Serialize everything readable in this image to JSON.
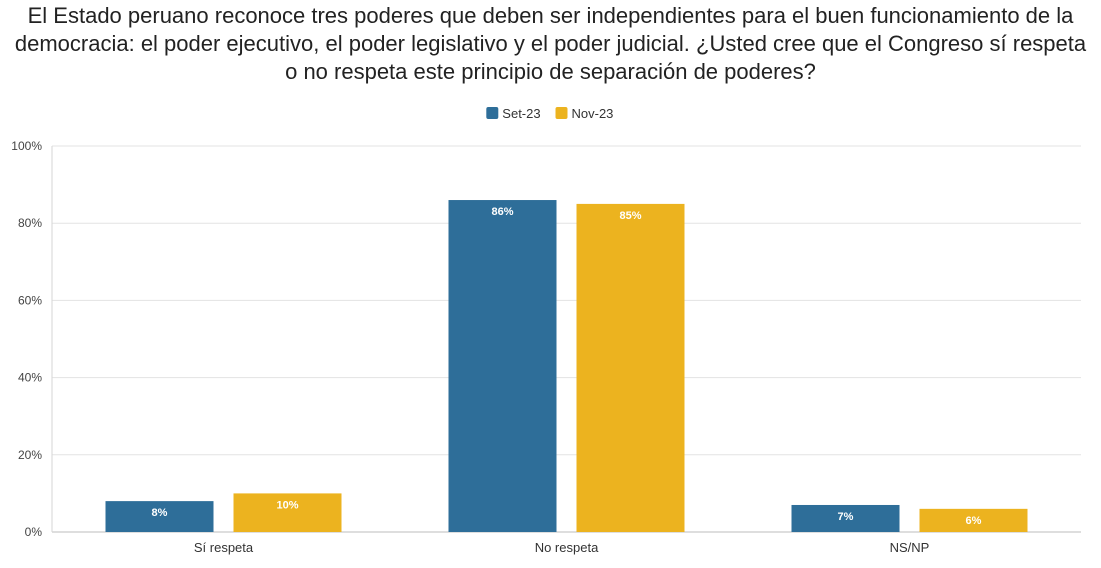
{
  "chart_data": {
    "type": "bar",
    "title_lines": [
      "El Estado peruano reconoce tres poderes que deben ser independientes para el buen funcionamiento de la",
      "democracia: el poder ejecutivo, el poder legislativo y el poder judicial. ¿Usted cree que el Congreso sí respeta",
      "o no respeta este principio de separación de poderes?"
    ],
    "categories": [
      "Sí respeta",
      "No respeta",
      "NS/NP"
    ],
    "series": [
      {
        "name": "Set-23",
        "color": "#2e6e99",
        "values": [
          8,
          86,
          7
        ],
        "labels": [
          "8%",
          "86%",
          "7%"
        ]
      },
      {
        "name": "Nov-23",
        "color": "#ecb31f",
        "values": [
          10,
          85,
          6
        ],
        "labels": [
          "10%",
          "85%",
          "6%"
        ]
      }
    ],
    "ylim": [
      0,
      100
    ],
    "yticks": [
      0,
      20,
      40,
      60,
      80,
      100
    ],
    "ytick_labels": [
      "0%",
      "20%",
      "40%",
      "60%",
      "80%",
      "100%"
    ],
    "xlabel": "",
    "ylabel": "",
    "grid": true,
    "legend_position": "top-center"
  }
}
